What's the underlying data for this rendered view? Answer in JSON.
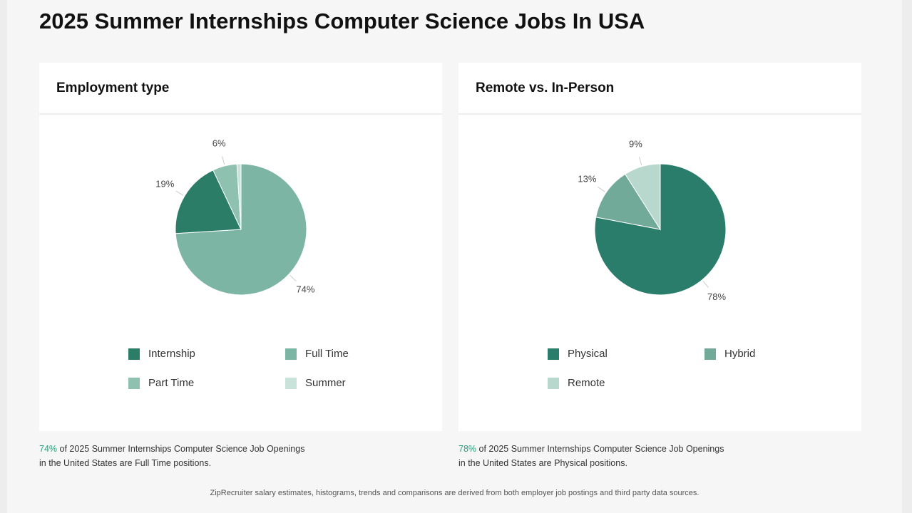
{
  "page_title": "2025 Summer Internships Computer Science Jobs In USA",
  "chart_data": [
    {
      "type": "pie",
      "title": "Employment type",
      "categories": [
        "Full Time",
        "Internship",
        "Part Time",
        "Summer"
      ],
      "values": [
        74,
        19,
        6,
        1
      ],
      "value_labels": [
        "74%",
        "19%",
        "6%",
        null
      ],
      "colors": [
        "#7db5a4",
        "#2b7d68",
        "#8fc1b1",
        "#c9e3db"
      ],
      "legend_order": [
        1,
        0,
        2,
        3
      ]
    },
    {
      "type": "pie",
      "title": "Remote vs. In-Person",
      "categories": [
        "Physical",
        "Hybrid",
        "Remote"
      ],
      "values": [
        78,
        13,
        9
      ],
      "value_labels": [
        "78%",
        "13%",
        "9%"
      ],
      "colors": [
        "#2b7d6b",
        "#72aa9a",
        "#b8d8ce"
      ],
      "legend_order": [
        0,
        1,
        2
      ]
    }
  ],
  "captions": [
    {
      "highlight": "74%",
      "text": "of 2025 Summer Internships Computer Science Job Openings in the United States are Full Time positions."
    },
    {
      "highlight": "78%",
      "text": "of 2025 Summer Internships Computer Science Job Openings in the United States are Physical positions."
    }
  ],
  "footer": "ZipRecruiter salary estimates, histograms, trends and comparisons are derived from both employer job postings and third party data sources."
}
